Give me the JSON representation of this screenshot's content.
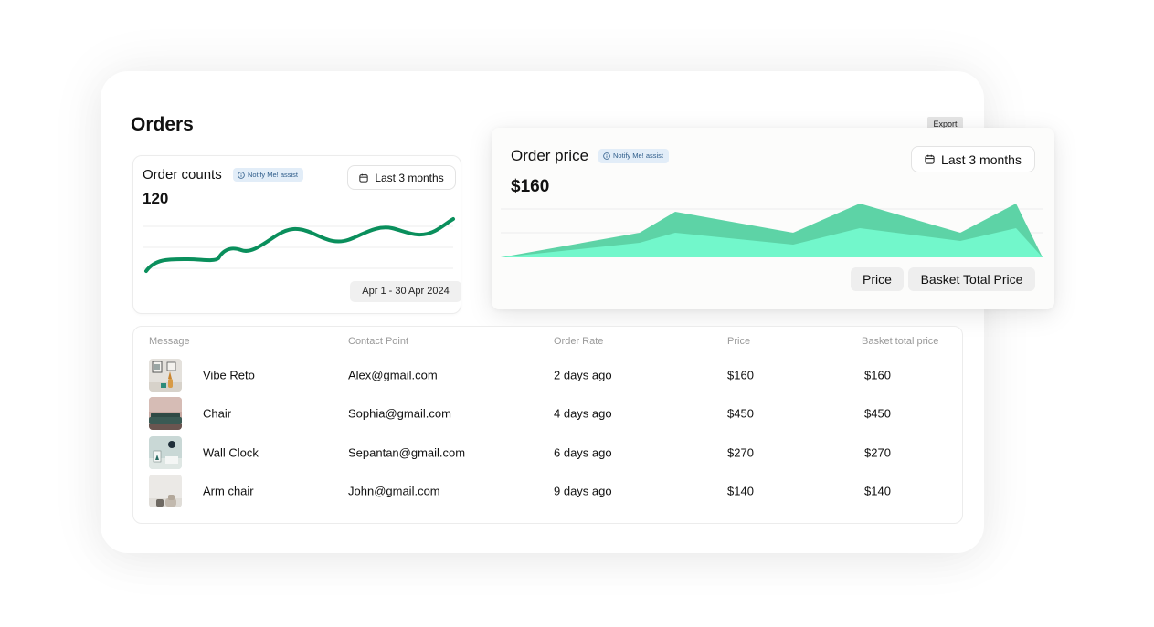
{
  "page": {
    "title": "Orders",
    "export_label": "Export"
  },
  "order_counts": {
    "title": "Order counts",
    "badge": "Notify Me! assist",
    "range_label": "Last 3 months",
    "value": "120",
    "date_range": "Apr 1 - 30 Apr 2024",
    "line_color": "#0a8f5c"
  },
  "order_price": {
    "title": "Order price",
    "badge": "Notify Me! assist",
    "range_label": "Last 3 months",
    "value": "$160",
    "legend": [
      "Price",
      "Basket Total Price"
    ],
    "colors": {
      "back": "#5dd3a6",
      "front": "#72f7cb"
    }
  },
  "table": {
    "headers": [
      "Message",
      "Contact Point",
      "Order Rate",
      "Price",
      "Basket total price"
    ],
    "rows": [
      {
        "name": "Vibe Reto",
        "contact": "Alex@gmail.com",
        "rate": "2 days ago",
        "price": "$160",
        "basket": "$160",
        "thumb": "vase-decor-icon"
      },
      {
        "name": "Chair",
        "contact": "Sophia@gmail.com",
        "rate": "4 days ago",
        "price": "$450",
        "basket": "$450",
        "thumb": "sofa-icon"
      },
      {
        "name": "Wall Clock",
        "contact": "Sepantan@gmail.com",
        "rate": "6 days ago",
        "price": "$270",
        "basket": "$270",
        "thumb": "wall-clock-icon"
      },
      {
        "name": "Arm chair",
        "contact": "John@gmail.com",
        "rate": "9 days ago",
        "price": "$140",
        "basket": "$140",
        "thumb": "armchair-icon"
      }
    ]
  }
}
